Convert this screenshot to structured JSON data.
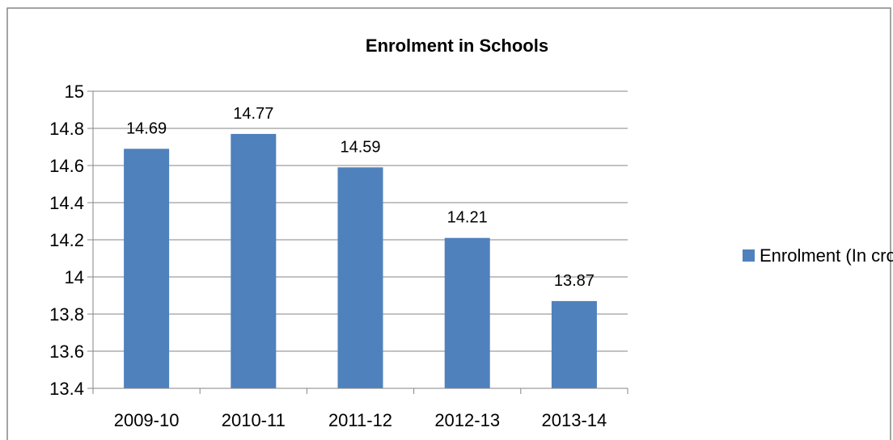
{
  "chart_data": {
    "type": "bar",
    "title": "Enrolment in Schools",
    "categories": [
      "2009-10",
      "2010-11",
      "2011-12",
      "2012-13",
      "2013-14"
    ],
    "series": [
      {
        "name": "Enrolment (In crore)",
        "values": [
          14.69,
          14.77,
          14.59,
          14.21,
          13.87
        ]
      }
    ],
    "data_labels": [
      "14.69",
      "14.77",
      "14.59",
      "14.21",
      "13.87"
    ],
    "y_ticks": [
      "13.4",
      "13.6",
      "13.8",
      "14",
      "14.2",
      "14.4",
      "14.6",
      "14.8",
      "15"
    ],
    "ylim": [
      13.4,
      15
    ],
    "grid": true,
    "legend_position": "right",
    "colors": {
      "bar": "#4F81BD",
      "grid": "#868686",
      "axis": "#868686",
      "frame": "#868686"
    }
  }
}
